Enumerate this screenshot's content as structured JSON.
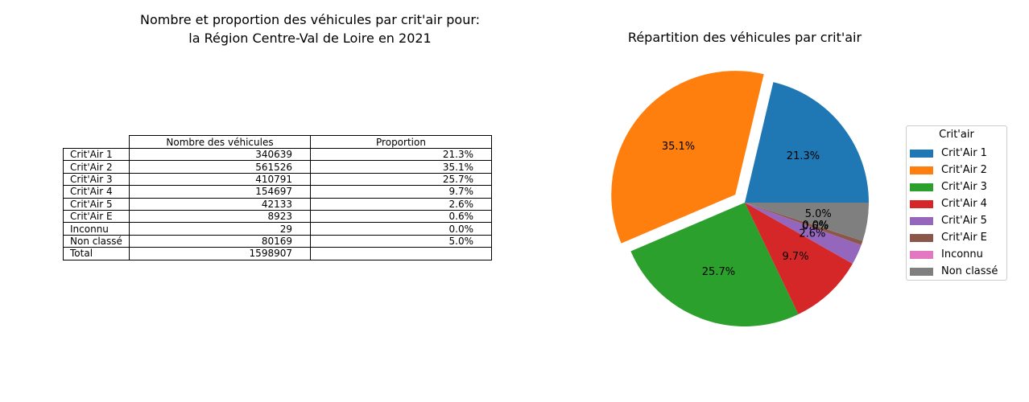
{
  "left_title_line1": "Nombre et proportion des véhicules par crit'air pour:",
  "left_title_line2": "la Région Centre-Val de Loire en 2021",
  "table": {
    "col_headers": [
      "Nombre des véhicules",
      "Proportion"
    ],
    "rows": [
      {
        "label": "Crit'Air 1",
        "count": "340639",
        "prop": "21.3%"
      },
      {
        "label": "Crit'Air 2",
        "count": "561526",
        "prop": "35.1%"
      },
      {
        "label": "Crit'Air 3",
        "count": "410791",
        "prop": "25.7%"
      },
      {
        "label": "Crit'Air 4",
        "count": "154697",
        "prop": "9.7%"
      },
      {
        "label": "Crit'Air 5",
        "count": "42133",
        "prop": "2.6%"
      },
      {
        "label": "Crit'Air E",
        "count": "8923",
        "prop": "0.6%"
      },
      {
        "label": "Inconnu",
        "count": "29",
        "prop": "0.0%"
      },
      {
        "label": "Non classé",
        "count": "80169",
        "prop": "5.0%"
      },
      {
        "label": "Total",
        "count": "1598907",
        "prop": ""
      }
    ]
  },
  "chart_data": {
    "type": "pie",
    "title": "Répartition des véhicules par crit'air",
    "legend_title": "Crit'air",
    "legend_placement": "right",
    "explode_index": 1,
    "slices": [
      {
        "name": "Crit'Air 1",
        "value": 340639,
        "label": "21.3%",
        "color": "#1f77b4"
      },
      {
        "name": "Crit'Air 2",
        "value": 561526,
        "label": "35.1%",
        "color": "#ff7f0e"
      },
      {
        "name": "Crit'Air 3",
        "value": 410791,
        "label": "25.7%",
        "color": "#2ca02c"
      },
      {
        "name": "Crit'Air 4",
        "value": 154697,
        "label": "9.7%",
        "color": "#d62728"
      },
      {
        "name": "Crit'Air 5",
        "value": 42133,
        "label": "2.6%",
        "color": "#9467bd"
      },
      {
        "name": "Crit'Air E",
        "value": 8923,
        "label": "0.6%",
        "color": "#8c564b"
      },
      {
        "name": "Inconnu",
        "value": 29,
        "label": "0.0%",
        "color": "#e377c2"
      },
      {
        "name": "Non classé",
        "value": 80169,
        "label": "5.0%",
        "color": "#7f7f7f"
      }
    ]
  }
}
